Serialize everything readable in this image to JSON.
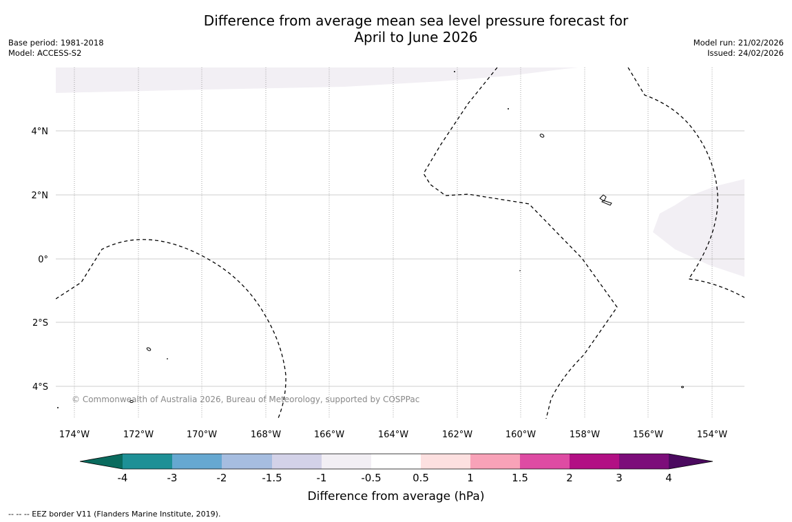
{
  "title": {
    "line1": "Difference from average mean sea level pressure forecast for",
    "line2": "April to June 2026"
  },
  "meta": {
    "base_period": "Base period: 1981-2018",
    "model": "Model: ACCESS-S2",
    "model_run": "Model run: 21/02/2026",
    "issued": "Issued: 24/02/2026"
  },
  "map": {
    "longitude_labels": [
      "174°W",
      "172°W",
      "170°W",
      "168°W",
      "166°W",
      "164°W",
      "162°W",
      "160°W",
      "158°W",
      "156°W",
      "154°W"
    ],
    "latitude_labels": [
      "4°N",
      "2°N",
      "0°",
      "2°S",
      "4°S"
    ],
    "copyright": "© Commonwealth of Australia 2026, Bureau of Meteorology, supported by COSPPac",
    "land_color": "#000000",
    "anomaly_fill_color": "#f2eff4",
    "eez_line_style": "dashed"
  },
  "colorbar": {
    "title": "Difference from average (hPa)",
    "tick_labels": [
      "-4",
      "-3",
      "-2",
      "-1.5",
      "-1",
      "-0.5",
      "0.5",
      "1",
      "1.5",
      "2",
      "3",
      "4"
    ],
    "colors": [
      "#0a6b5e",
      "#1e9096",
      "#66a8d1",
      "#a6bde0",
      "#d3d2e8",
      "#f2eff4",
      "#ffffff",
      "#fde0e0",
      "#f8a2b8",
      "#de4ba3",
      "#b20f84",
      "#7c0d7a",
      "#4b0a5f"
    ]
  },
  "footer": {
    "eez_note": "--  --  -- EEZ border V11 (Flanders Marine Institute, 2019)."
  }
}
